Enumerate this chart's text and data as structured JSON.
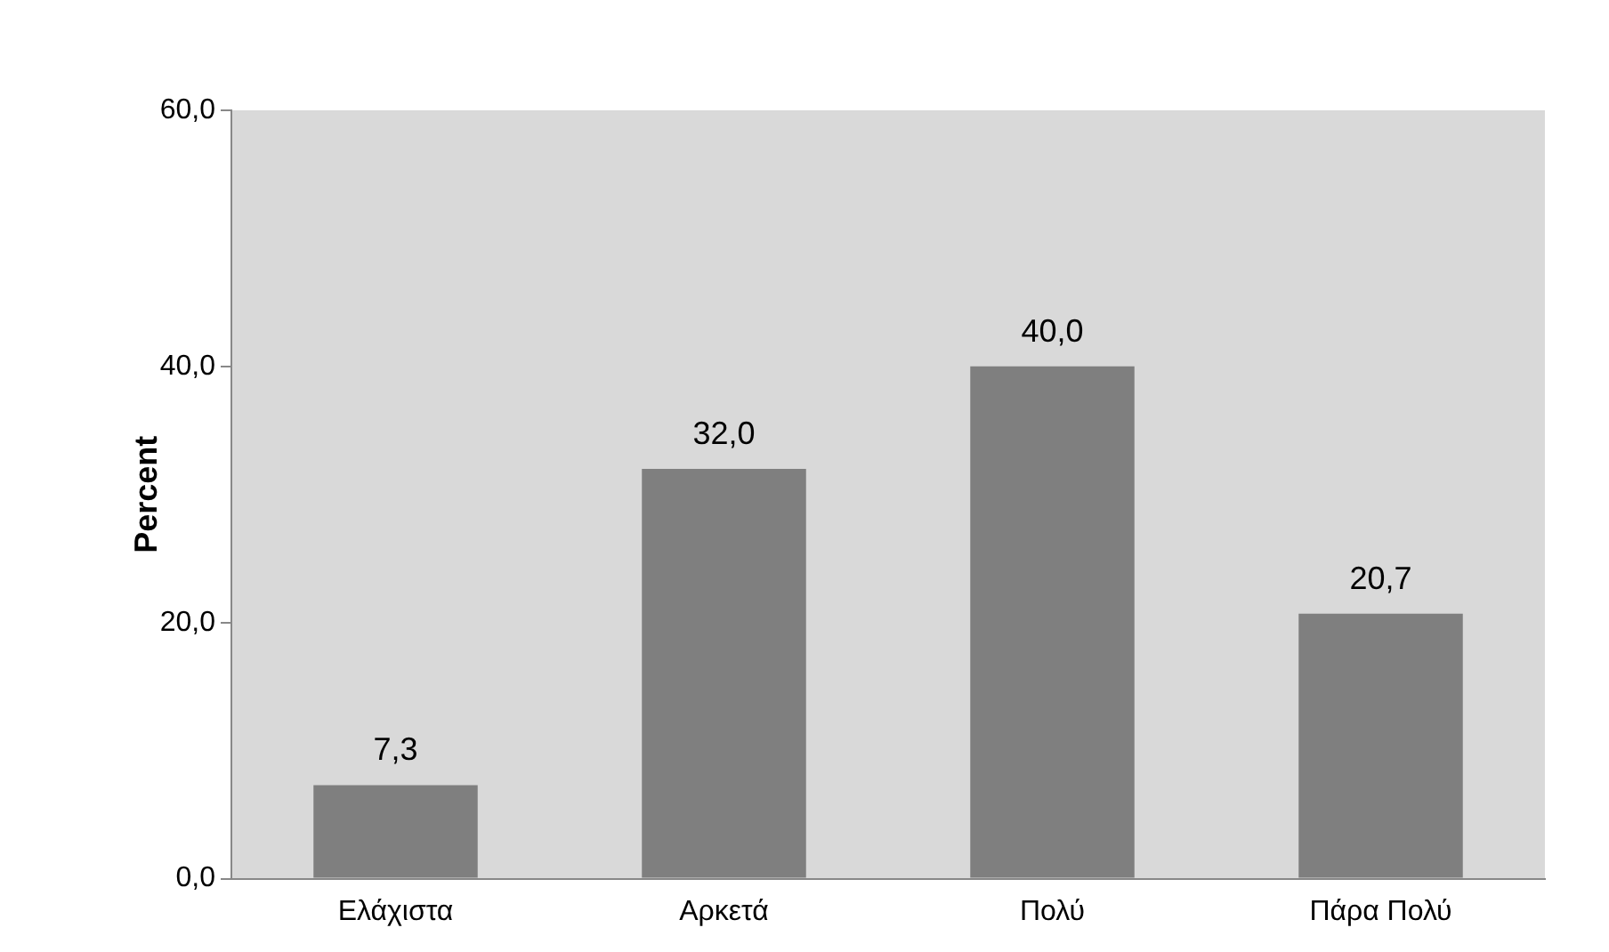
{
  "chart_data": {
    "type": "bar",
    "ylabel": "Percent",
    "categories": [
      "Ελάχιστα",
      "Αρκετά",
      "Πολύ",
      "Πάρα Πολύ"
    ],
    "values": [
      7.3,
      32.0,
      40.0,
      20.7
    ],
    "value_labels": [
      "7,3",
      "32,0",
      "40,0",
      "20,7"
    ],
    "color": "#7f7f7f",
    "ylim": [
      0,
      60
    ],
    "yticks": [
      {
        "value": 0,
        "label": "0,0"
      },
      {
        "value": 20,
        "label": "20,0"
      },
      {
        "value": 40,
        "label": "40,0"
      },
      {
        "value": 60,
        "label": "60,0"
      }
    ],
    "grid": false,
    "legend": false
  }
}
